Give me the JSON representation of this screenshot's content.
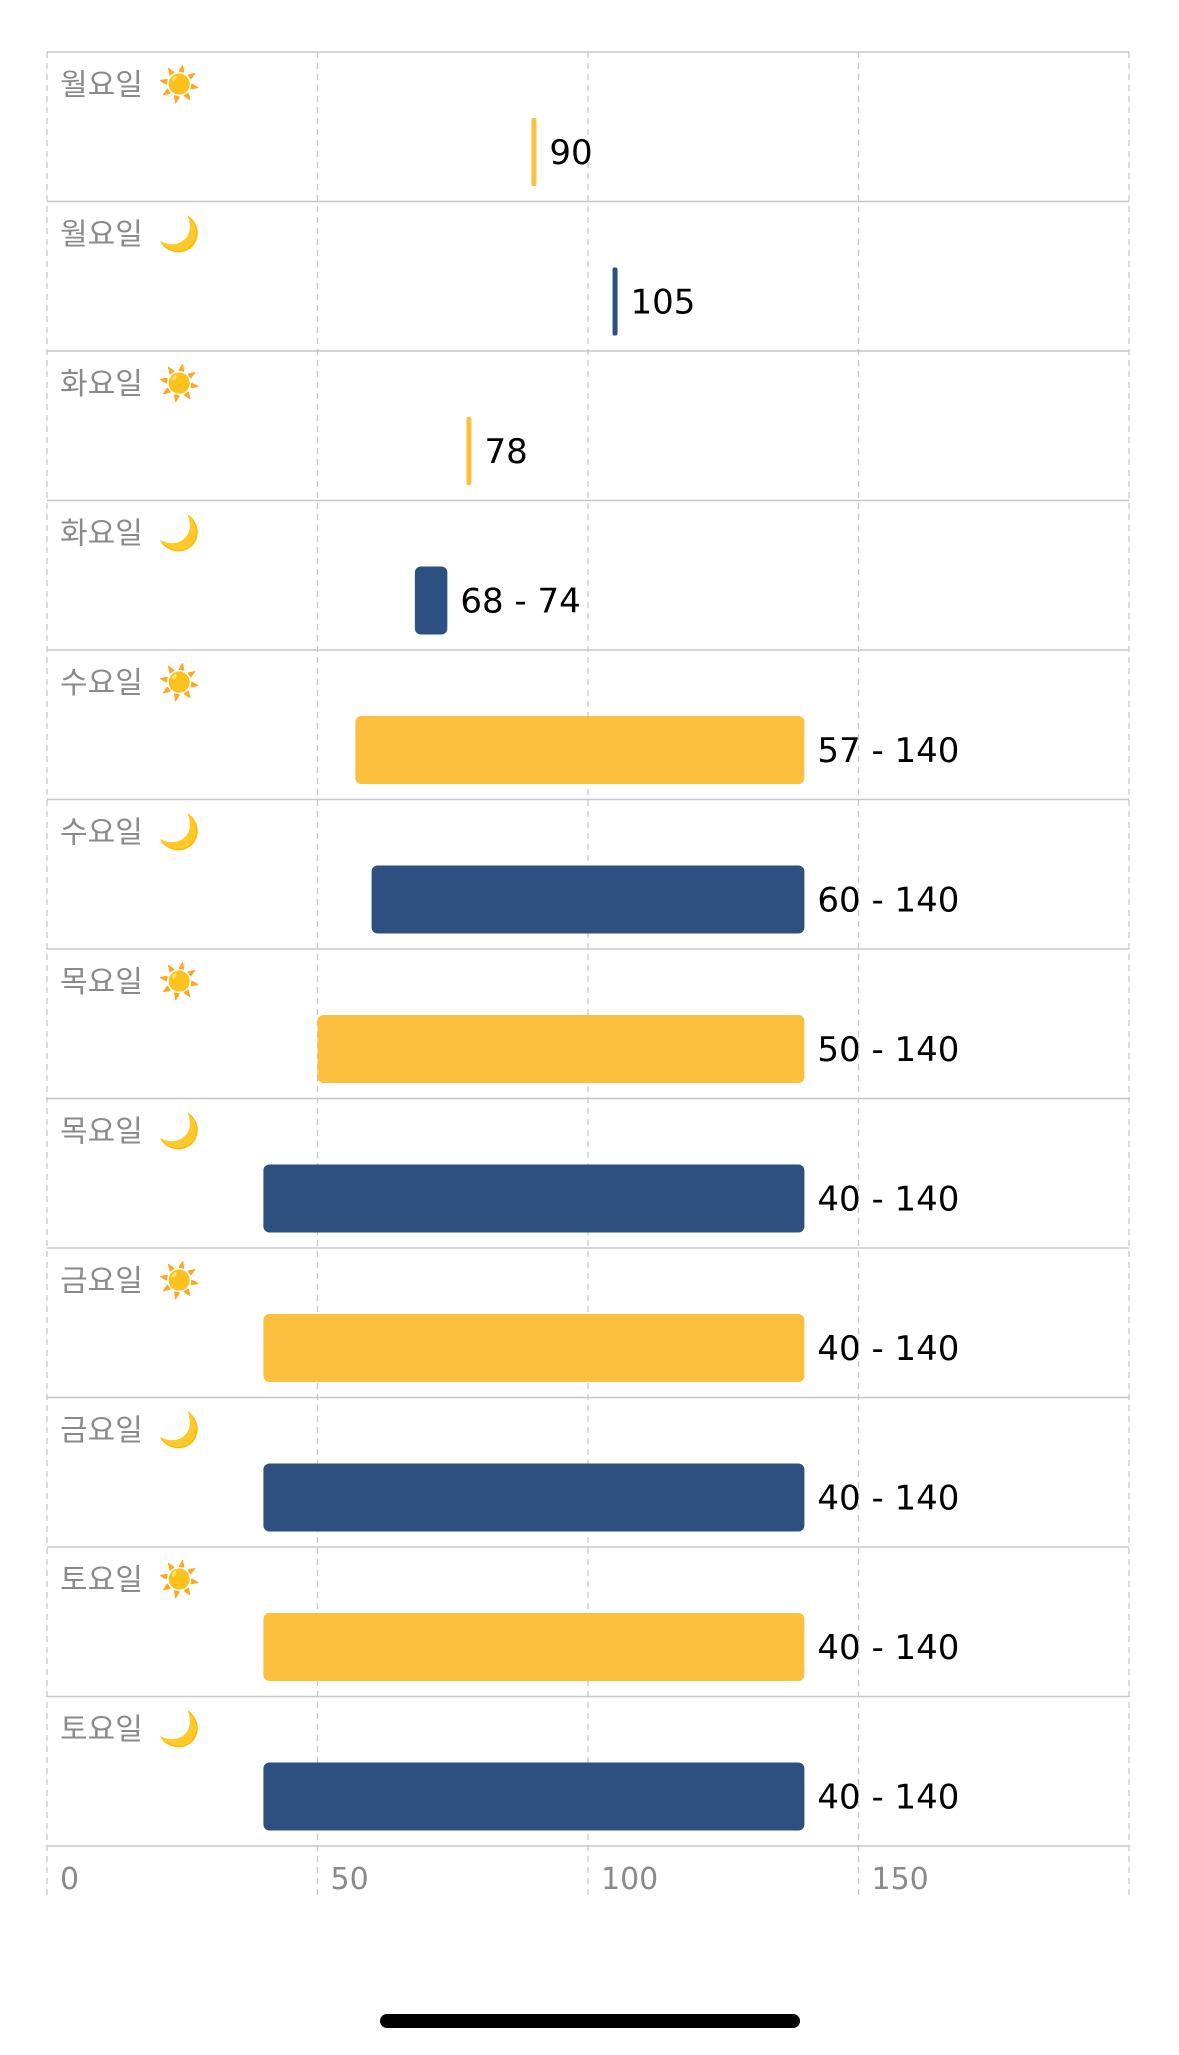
{
  "chart_data": {
    "type": "bar",
    "orientation": "horizontal",
    "variant": "range",
    "title": "",
    "xlabel": "",
    "ylabel": "",
    "xlim": [
      0,
      200
    ],
    "x_ticks": [
      0,
      50,
      100,
      150
    ],
    "x_tick_labels": [
      "0",
      "50",
      "100",
      "150"
    ],
    "grid": "vertical dashed",
    "legend": "none",
    "colors": {
      "day": "#FDBF3E",
      "night": "#2E5080",
      "grid": "#C8C8C8",
      "row_label": "#8A8A8A",
      "value_label": "#000000"
    },
    "rows": [
      {
        "category": "월요일",
        "period_icon": "sun-icon",
        "period_glyph": "☀️",
        "color_key": "day",
        "low": 90,
        "high": 90,
        "label": "90"
      },
      {
        "category": "월요일",
        "period_icon": "moon-icon",
        "period_glyph": "🌙",
        "color_key": "night",
        "low": 105,
        "high": 105,
        "label": "105"
      },
      {
        "category": "화요일",
        "period_icon": "sun-icon",
        "period_glyph": "☀️",
        "color_key": "day",
        "low": 78,
        "high": 78,
        "label": "78"
      },
      {
        "category": "화요일",
        "period_icon": "moon-icon",
        "period_glyph": "🌙",
        "color_key": "night",
        "low": 68,
        "high": 74,
        "label": "68 - 74"
      },
      {
        "category": "수요일",
        "period_icon": "sun-icon",
        "period_glyph": "☀️",
        "color_key": "day",
        "low": 57,
        "high": 140,
        "label": "57 - 140"
      },
      {
        "category": "수요일",
        "period_icon": "moon-icon",
        "period_glyph": "🌙",
        "color_key": "night",
        "low": 60,
        "high": 140,
        "label": "60 - 140"
      },
      {
        "category": "목요일",
        "period_icon": "sun-icon",
        "period_glyph": "☀️",
        "color_key": "day",
        "low": 50,
        "high": 140,
        "label": "50 - 140"
      },
      {
        "category": "목요일",
        "period_icon": "moon-icon",
        "period_glyph": "🌙",
        "color_key": "night",
        "low": 40,
        "high": 140,
        "label": "40 - 140"
      },
      {
        "category": "금요일",
        "period_icon": "sun-icon",
        "period_glyph": "☀️",
        "color_key": "day",
        "low": 40,
        "high": 140,
        "label": "40 - 140"
      },
      {
        "category": "금요일",
        "period_icon": "moon-icon",
        "period_glyph": "🌙",
        "color_key": "night",
        "low": 40,
        "high": 140,
        "label": "40 - 140"
      },
      {
        "category": "토요일",
        "period_icon": "sun-icon",
        "period_glyph": "☀️",
        "color_key": "day",
        "low": 40,
        "high": 140,
        "label": "40 - 140"
      },
      {
        "category": "토요일",
        "period_icon": "moon-icon",
        "period_glyph": "🌙",
        "color_key": "night",
        "low": 40,
        "high": 140,
        "label": "40 - 140"
      }
    ]
  }
}
